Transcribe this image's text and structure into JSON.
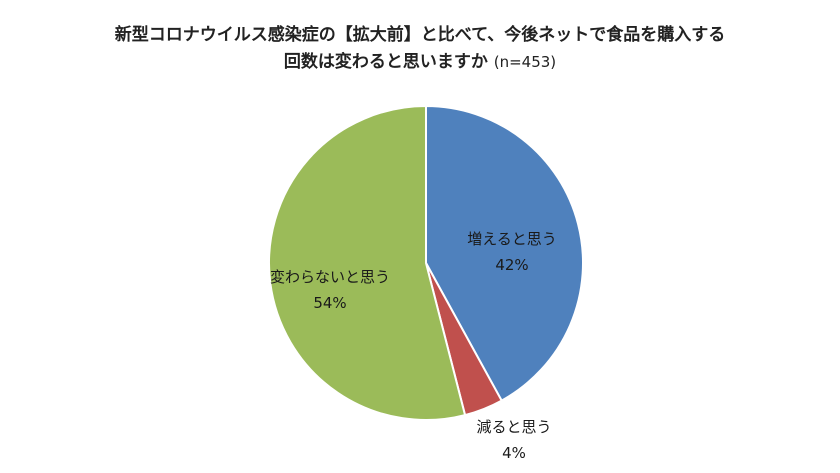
{
  "title": {
    "line1": "新型コロナウイルス感染症の【拡大前】と比べて、今後ネットで食品を購入する",
    "line2": "回数は変わると思いますか",
    "suffix": "(n=453)"
  },
  "chart_data": {
    "type": "pie",
    "title": "新型コロナウイルス感染症の【拡大前】と比べて、今後ネットで食品を購入する回数は変わると思いますか (n=453)",
    "slices": [
      {
        "label": "増えると思う",
        "value": 42,
        "value_label": "42%",
        "color": "#4f81bd"
      },
      {
        "label": "減ると思う",
        "value": 4,
        "value_label": "4%",
        "color": "#c0504d"
      },
      {
        "label": "変わらないと思う",
        "value": 54,
        "value_label": "54%",
        "color": "#9bbb59"
      }
    ],
    "start": "12 o'clock",
    "direction": "clockwise",
    "legend": "none"
  }
}
